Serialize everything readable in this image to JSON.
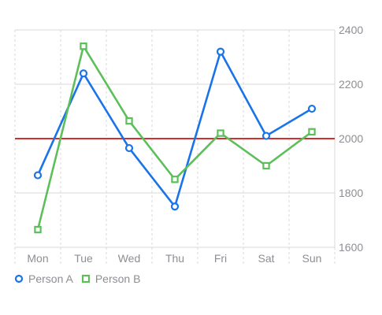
{
  "chart_data": {
    "type": "line",
    "categories": [
      "Mon",
      "Tue",
      "Wed",
      "Thu",
      "Fri",
      "Sat",
      "Sun"
    ],
    "series": [
      {
        "name": "Person A",
        "values": [
          1865,
          2240,
          1965,
          1750,
          2320,
          2010,
          2110
        ],
        "color": "#1a73e8",
        "marker": "circle"
      },
      {
        "name": "Person B",
        "values": [
          1665,
          2340,
          2065,
          1850,
          2020,
          1900,
          2025
        ],
        "color": "#5cbf5a",
        "marker": "square"
      }
    ],
    "yticks": [
      1600,
      1800,
      2000,
      2200,
      2400
    ],
    "ylim": [
      1600,
      2400
    ],
    "reference_line": {
      "value": 2000,
      "color": "#d32f2f"
    },
    "y_axis_position": "right",
    "grid": true,
    "legend_position": "bottom-left"
  }
}
